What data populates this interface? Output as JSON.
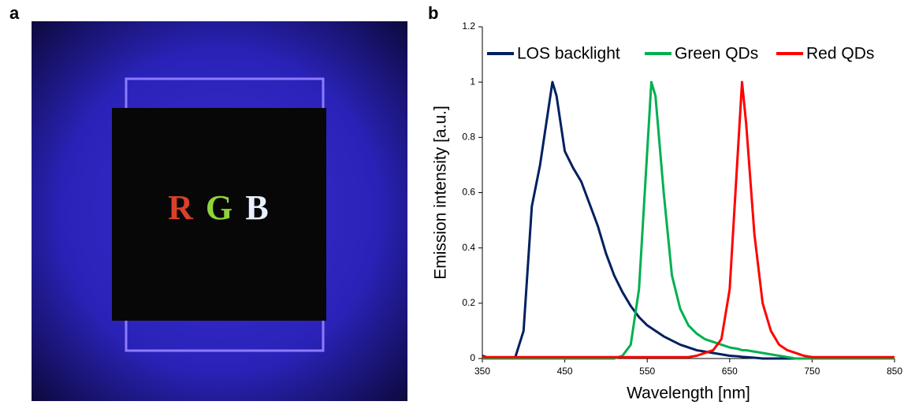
{
  "panel_labels": [
    "a",
    "b"
  ],
  "photo": {
    "letters": [
      "R",
      "G",
      "B"
    ]
  },
  "chart_data": {
    "type": "line",
    "xlabel": "Wavelength [nm]",
    "ylabel": "Emission intensity [a.u.]",
    "xlim": [
      350,
      850
    ],
    "xticks": [
      350,
      450,
      550,
      650,
      750,
      850
    ],
    "ylim": [
      0,
      1.2
    ],
    "yticks": [
      0,
      0.2,
      0.4,
      0.6,
      0.8,
      1,
      1.2
    ],
    "legend": "top",
    "x": [
      350,
      360,
      370,
      380,
      390,
      400,
      410,
      420,
      430,
      435,
      440,
      450,
      460,
      470,
      480,
      490,
      500,
      510,
      520,
      530,
      540,
      550,
      555,
      560,
      570,
      580,
      590,
      600,
      610,
      620,
      630,
      640,
      650,
      660,
      665,
      670,
      680,
      690,
      700,
      710,
      720,
      730,
      740,
      750,
      760,
      770,
      780,
      790,
      800,
      810,
      820,
      830,
      840,
      850
    ],
    "series": [
      {
        "name": "LOS backlight",
        "color": "#002060",
        "values": [
          0.01,
          0,
          0,
          0,
          0.005,
          0.1,
          0.55,
          0.7,
          0.9,
          1.0,
          0.95,
          0.75,
          0.69,
          0.64,
          0.56,
          0.48,
          0.38,
          0.3,
          0.24,
          0.19,
          0.15,
          0.12,
          0.11,
          0.1,
          0.08,
          0.065,
          0.05,
          0.04,
          0.03,
          0.025,
          0.02,
          0.015,
          0.01,
          0.008,
          0.006,
          0.005,
          0.003,
          0,
          0,
          0,
          0,
          0,
          0,
          0,
          0,
          0,
          0,
          0,
          0,
          0,
          0,
          0,
          0,
          0
        ]
      },
      {
        "name": "Green QDs",
        "color": "#00b050",
        "values": [
          0,
          0,
          0,
          0,
          0,
          0,
          0,
          0,
          0,
          0,
          0,
          0,
          0,
          0,
          0,
          0,
          0,
          0,
          0.01,
          0.05,
          0.25,
          0.75,
          1.0,
          0.95,
          0.6,
          0.3,
          0.18,
          0.12,
          0.09,
          0.07,
          0.06,
          0.05,
          0.04,
          0.035,
          0.03,
          0.03,
          0.025,
          0.02,
          0.015,
          0.01,
          0.005,
          0,
          0,
          0,
          0,
          0,
          0,
          0,
          0,
          0,
          0,
          0,
          0,
          0
        ]
      },
      {
        "name": "Red QDs",
        "color": "#ff0000",
        "values": [
          0.005,
          0.005,
          0.005,
          0.005,
          0.005,
          0.005,
          0.005,
          0.005,
          0.005,
          0.005,
          0.005,
          0.005,
          0.005,
          0.005,
          0.005,
          0.005,
          0.005,
          0.005,
          0.005,
          0.005,
          0.005,
          0.005,
          0.005,
          0.005,
          0.005,
          0.005,
          0.005,
          0.005,
          0.01,
          0.02,
          0.03,
          0.07,
          0.25,
          0.75,
          1.0,
          0.85,
          0.45,
          0.2,
          0.1,
          0.05,
          0.03,
          0.02,
          0.01,
          0.005,
          0.005,
          0.005,
          0.005,
          0.005,
          0.005,
          0.005,
          0.005,
          0.005,
          0.005,
          0.005
        ]
      }
    ]
  }
}
